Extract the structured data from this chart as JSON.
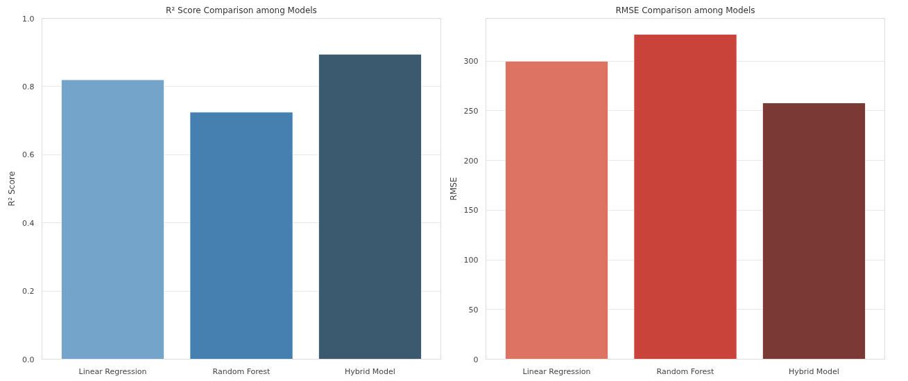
{
  "chart_data": [
    {
      "type": "bar",
      "title": "R² Score Comparison among Models",
      "ylabel": "R² Score",
      "categories": [
        "Linear Regression",
        "Random Forest",
        "Hybrid Model"
      ],
      "values": [
        0.82,
        0.725,
        0.895
      ],
      "colors": [
        "#74a4c9",
        "#4580b0",
        "#3b5a70"
      ],
      "ylim": [
        0,
        1.0
      ],
      "yticks": [
        {
          "value": 0,
          "label": "0.0"
        },
        0.2,
        0.4,
        0.6,
        0.8,
        {
          "value": 1,
          "label": "1.0"
        }
      ],
      "grid": "y"
    },
    {
      "type": "bar",
      "title": "RMSE Comparison among Models",
      "ylabel": "RMSE",
      "categories": [
        "Linear Regression",
        "Random Forest",
        "Hybrid Model"
      ],
      "values": [
        300,
        327,
        258
      ],
      "colors": [
        "#dc7363",
        "#c9433b",
        "#7a3935"
      ],
      "ylim": [
        0,
        343
      ],
      "yticks": [
        0,
        50,
        100,
        150,
        200,
        250,
        300
      ],
      "grid": "y"
    }
  ]
}
